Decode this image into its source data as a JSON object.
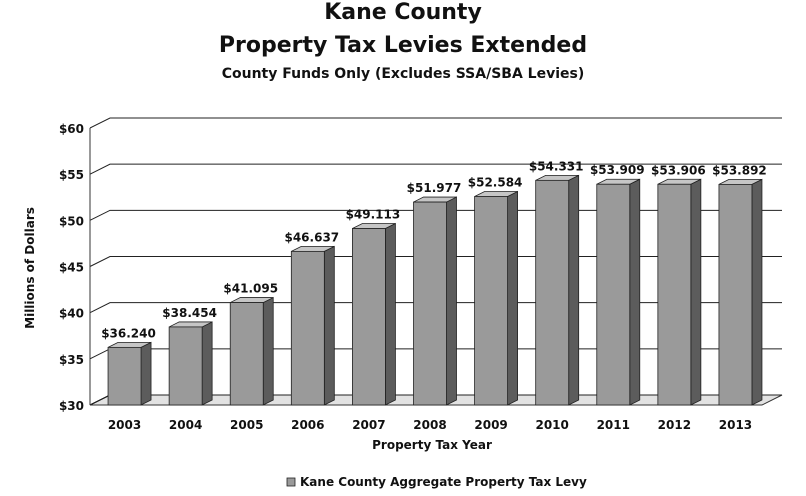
{
  "chart_data": {
    "type": "bar",
    "title": "Kane County",
    "title_line2": "Property Tax Levies Extended",
    "subtitle": "County Funds Only (Excludes SSA/SBA Levies)",
    "xlabel": "Property Tax Year",
    "ylabel": "Millions of Dollars",
    "categories": [
      "2003",
      "2004",
      "2005",
      "2006",
      "2007",
      "2008",
      "2009",
      "2010",
      "2011",
      "2012",
      "2013"
    ],
    "series": [
      {
        "name": "Kane County Aggregate Property Tax Levy",
        "values": [
          36.24,
          38.454,
          41.095,
          46.637,
          49.113,
          51.977,
          52.584,
          54.331,
          53.909,
          53.906,
          53.892
        ],
        "labels": [
          "$36.240",
          "$38.454",
          "$41.095",
          "$46.637",
          "$49.113",
          "$51.977",
          "$52.584",
          "$54.331",
          "$53.909",
          "$53.906",
          "$53.892"
        ]
      }
    ],
    "ylim": [
      30,
      60
    ],
    "yticks": [
      30,
      35,
      40,
      45,
      50,
      55,
      60
    ],
    "ytick_labels": [
      "$30",
      "$35",
      "$40",
      "$45",
      "$50",
      "$55",
      "$60"
    ],
    "grid": true,
    "legend_position": "bottom",
    "style": "3d-column",
    "colors": {
      "bar_front": "#9a9a9a",
      "bar_side": "#5c5c5c",
      "bar_top": "#c6c6c6",
      "grid": "#222222"
    }
  }
}
